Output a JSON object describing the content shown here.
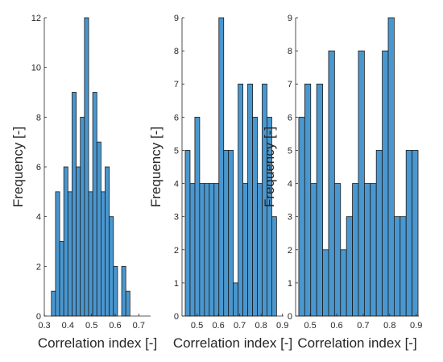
{
  "chart_data": [
    {
      "type": "bar",
      "subtype": "histogram",
      "xlabel": "Correlation index [-]",
      "ylabel": "Frequency [-]",
      "xlim": [
        0.3,
        0.75
      ],
      "ylim": [
        0,
        12
      ],
      "xticks": [
        0.3,
        0.4,
        0.5,
        0.6,
        0.7
      ],
      "xtick_labels": [
        "0.3",
        "0.4",
        "0.5",
        "0.6",
        "0.7"
      ],
      "yticks": [
        0,
        2,
        4,
        6,
        8,
        10,
        12
      ],
      "ytick_labels": [
        "0",
        "2",
        "4",
        "6",
        "8",
        "10",
        "12"
      ],
      "bin_start": 0.33,
      "bin_width": 0.0175,
      "values": [
        1,
        5,
        3,
        6,
        5,
        9,
        6,
        8,
        12,
        5,
        9,
        7,
        5,
        6,
        4,
        2,
        0,
        2,
        1
      ],
      "color": "#4a97cf"
    },
    {
      "type": "bar",
      "subtype": "histogram",
      "xlabel": "Correlation index [-]",
      "ylabel": "Frequency [-]",
      "xlim": [
        0.43,
        0.905
      ],
      "ylim": [
        0,
        9
      ],
      "xticks": [
        0.5,
        0.6,
        0.7,
        0.8,
        0.9
      ],
      "xtick_labels": [
        "0.5",
        "0.6",
        "0.7",
        "0.8",
        "0.9"
      ],
      "yticks": [
        0,
        1,
        2,
        3,
        4,
        5,
        6,
        7,
        8,
        9
      ],
      "ytick_labels": [
        "0",
        "1",
        "2",
        "3",
        "4",
        "5",
        "6",
        "7",
        "8",
        "9"
      ],
      "bin_start": 0.445,
      "bin_width": 0.0225,
      "values": [
        5,
        4,
        6,
        4,
        4,
        4,
        4,
        9,
        5,
        5,
        1,
        7,
        4,
        7,
        6,
        4,
        7,
        6,
        3
      ],
      "color": "#4a97cf"
    },
    {
      "type": "bar",
      "subtype": "histogram",
      "xlabel": "Correlation index [-]",
      "ylabel": "Frequency [-]",
      "xlim": [
        0.445,
        0.91
      ],
      "ylim": [
        0,
        9
      ],
      "xticks": [
        0.5,
        0.6,
        0.7,
        0.8,
        0.9
      ],
      "xtick_labels": [
        "0.5",
        "0.6",
        "0.7",
        "0.8",
        "0.9"
      ],
      "yticks": [
        0,
        1,
        2,
        3,
        4,
        5,
        6,
        7,
        8,
        9
      ],
      "ytick_labels": [
        "0",
        "1",
        "2",
        "3",
        "4",
        "5",
        "6",
        "7",
        "8",
        "9"
      ],
      "bin_start": 0.457,
      "bin_width": 0.0225,
      "values": [
        6,
        7,
        4,
        7,
        2,
        8,
        4,
        2,
        3,
        4,
        8,
        4,
        4,
        5,
        8,
        9,
        3,
        3,
        5,
        5
      ],
      "color": "#4a97cf"
    }
  ]
}
